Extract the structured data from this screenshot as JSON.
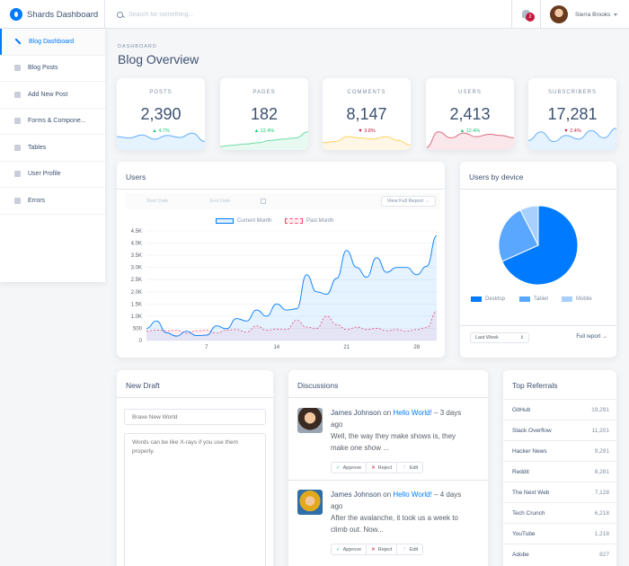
{
  "brand": {
    "name": "Shards Dashboard"
  },
  "search": {
    "placeholder": "Search for something..."
  },
  "notifications": {
    "count": "2"
  },
  "user": {
    "name": "Sierra Brooks"
  },
  "sidebar": {
    "items": [
      {
        "label": "Blog Dashboard",
        "icon": "edit-icon",
        "active": true
      },
      {
        "label": "Blog Posts",
        "icon": "list-icon"
      },
      {
        "label": "Add New Post",
        "icon": "file-icon"
      },
      {
        "label": "Forms & Compone...",
        "icon": "grid-icon"
      },
      {
        "label": "Tables",
        "icon": "table-icon"
      },
      {
        "label": "User Profile",
        "icon": "user-icon"
      },
      {
        "label": "Errors",
        "icon": "error-icon"
      }
    ]
  },
  "page": {
    "subtitle": "DASHBOARD",
    "title": "Blog Overview"
  },
  "stats": [
    {
      "label": "POSTS",
      "value": "2,390",
      "change": "4.7%",
      "direction": "up",
      "color": "#007bff",
      "spark": [
        0.55,
        0.5,
        0.62,
        0.45,
        0.6,
        0.52,
        0.7,
        0.35
      ]
    },
    {
      "label": "PAGES",
      "value": "182",
      "change": "12.4%",
      "direction": "up",
      "color": "#17c671",
      "spark": [
        0.15,
        0.2,
        0.25,
        0.3,
        0.4,
        0.45,
        0.5,
        0.75
      ]
    },
    {
      "label": "COMMENTS",
      "value": "8,147",
      "change": "3.8%",
      "direction": "down",
      "color": "#ffb400",
      "spark": [
        0.3,
        0.35,
        0.55,
        0.5,
        0.45,
        0.55,
        0.4,
        0.2
      ]
    },
    {
      "label": "USERS",
      "value": "2,413",
      "change": "12.4%",
      "direction": "up",
      "color": "#c4183c",
      "spark": [
        0.1,
        0.75,
        0.5,
        0.7,
        0.55,
        0.65,
        0.6,
        0.5
      ]
    },
    {
      "label": "SUBSCRIBERS",
      "value": "17,281",
      "change": "2.4%",
      "direction": "down",
      "color": "#007bff",
      "spark": [
        0.4,
        0.75,
        0.35,
        0.6,
        0.45,
        0.8,
        0.5,
        0.9
      ]
    }
  ],
  "users_card": {
    "title": "Users",
    "start_placeholder": "Start Date",
    "end_placeholder": "End Date",
    "full_report": "View Full Report →"
  },
  "chart_data": {
    "type": "line",
    "title": "",
    "xlabel": "",
    "ylabel": "",
    "ylim": [
      0,
      4500
    ],
    "y_ticks": [
      "0",
      "500",
      "1.0K",
      "1.5K",
      "2.0K",
      "2.5K",
      "3.0K",
      "3.5K",
      "4.0K",
      "4.5K"
    ],
    "x_ticks": [
      "7",
      "14",
      "21",
      "28"
    ],
    "x": [
      1,
      2,
      3,
      4,
      5,
      6,
      7,
      8,
      9,
      10,
      11,
      12,
      13,
      14,
      15,
      16,
      17,
      18,
      19,
      20,
      21,
      22,
      23,
      24,
      25,
      26,
      27,
      28,
      29,
      30
    ],
    "series": [
      {
        "name": "Current Month",
        "color": "#007bff",
        "values": [
          500,
          800,
          320,
          180,
          380,
          200,
          220,
          600,
          480,
          900,
          800,
          1250,
          1000,
          1500,
          1250,
          1300,
          2700,
          2000,
          1900,
          2550,
          3700,
          3000,
          2600,
          3400,
          2800,
          3000,
          3000,
          2700,
          3050,
          4300
        ]
      },
      {
        "name": "Past Month",
        "color": "#ff4169",
        "values": [
          380,
          430,
          400,
          420,
          300,
          400,
          420,
          300,
          430,
          450,
          350,
          600,
          420,
          470,
          450,
          830,
          550,
          500,
          1000,
          650,
          450,
          550,
          450,
          500,
          400,
          450,
          380,
          450,
          530,
          1200
        ]
      }
    ]
  },
  "device_card": {
    "title": "Users by device",
    "select_value": "Last Week",
    "full_report": "Full report →"
  },
  "device_chart": {
    "type": "pie",
    "series": [
      {
        "name": "Desktop",
        "value": 68.3,
        "color": "#007bff"
      },
      {
        "name": "Tablet",
        "value": 24.2,
        "color": "#5aa7ff"
      },
      {
        "name": "Mobile",
        "value": 7.5,
        "color": "#a8d0ff"
      }
    ]
  },
  "draft": {
    "title": "New Draft",
    "title_placeholder": "Brave New World",
    "body_placeholder": "Words can be like X-rays if you use them properly."
  },
  "discussions": {
    "title": "Discussions",
    "items": [
      {
        "author": "James Johnson",
        "on": "on",
        "post": "Hello World!",
        "time": "– 3 days ago",
        "text": "Well, the way they make shows is, they make one show ..."
      },
      {
        "author": "James Johnson",
        "on": "on",
        "post": "Hello World!",
        "time": "– 4 days ago",
        "text": "After the avalanche, it took us a week to climb out. Now..."
      }
    ],
    "actions": {
      "approve": "Approve",
      "reject": "Reject",
      "edit": "Edit"
    }
  },
  "referrals": {
    "title": "Top Referrals",
    "rows": [
      {
        "name": "GitHub",
        "value": "19,291"
      },
      {
        "name": "Stack Overflow",
        "value": "11,201"
      },
      {
        "name": "Hacker News",
        "value": "9,291"
      },
      {
        "name": "Reddit",
        "value": "8,281"
      },
      {
        "name": "The Next Web",
        "value": "7,128"
      },
      {
        "name": "Tech Crunch",
        "value": "6,218"
      },
      {
        "name": "YouTube",
        "value": "1,218"
      },
      {
        "name": "Adobe",
        "value": "827"
      }
    ]
  }
}
